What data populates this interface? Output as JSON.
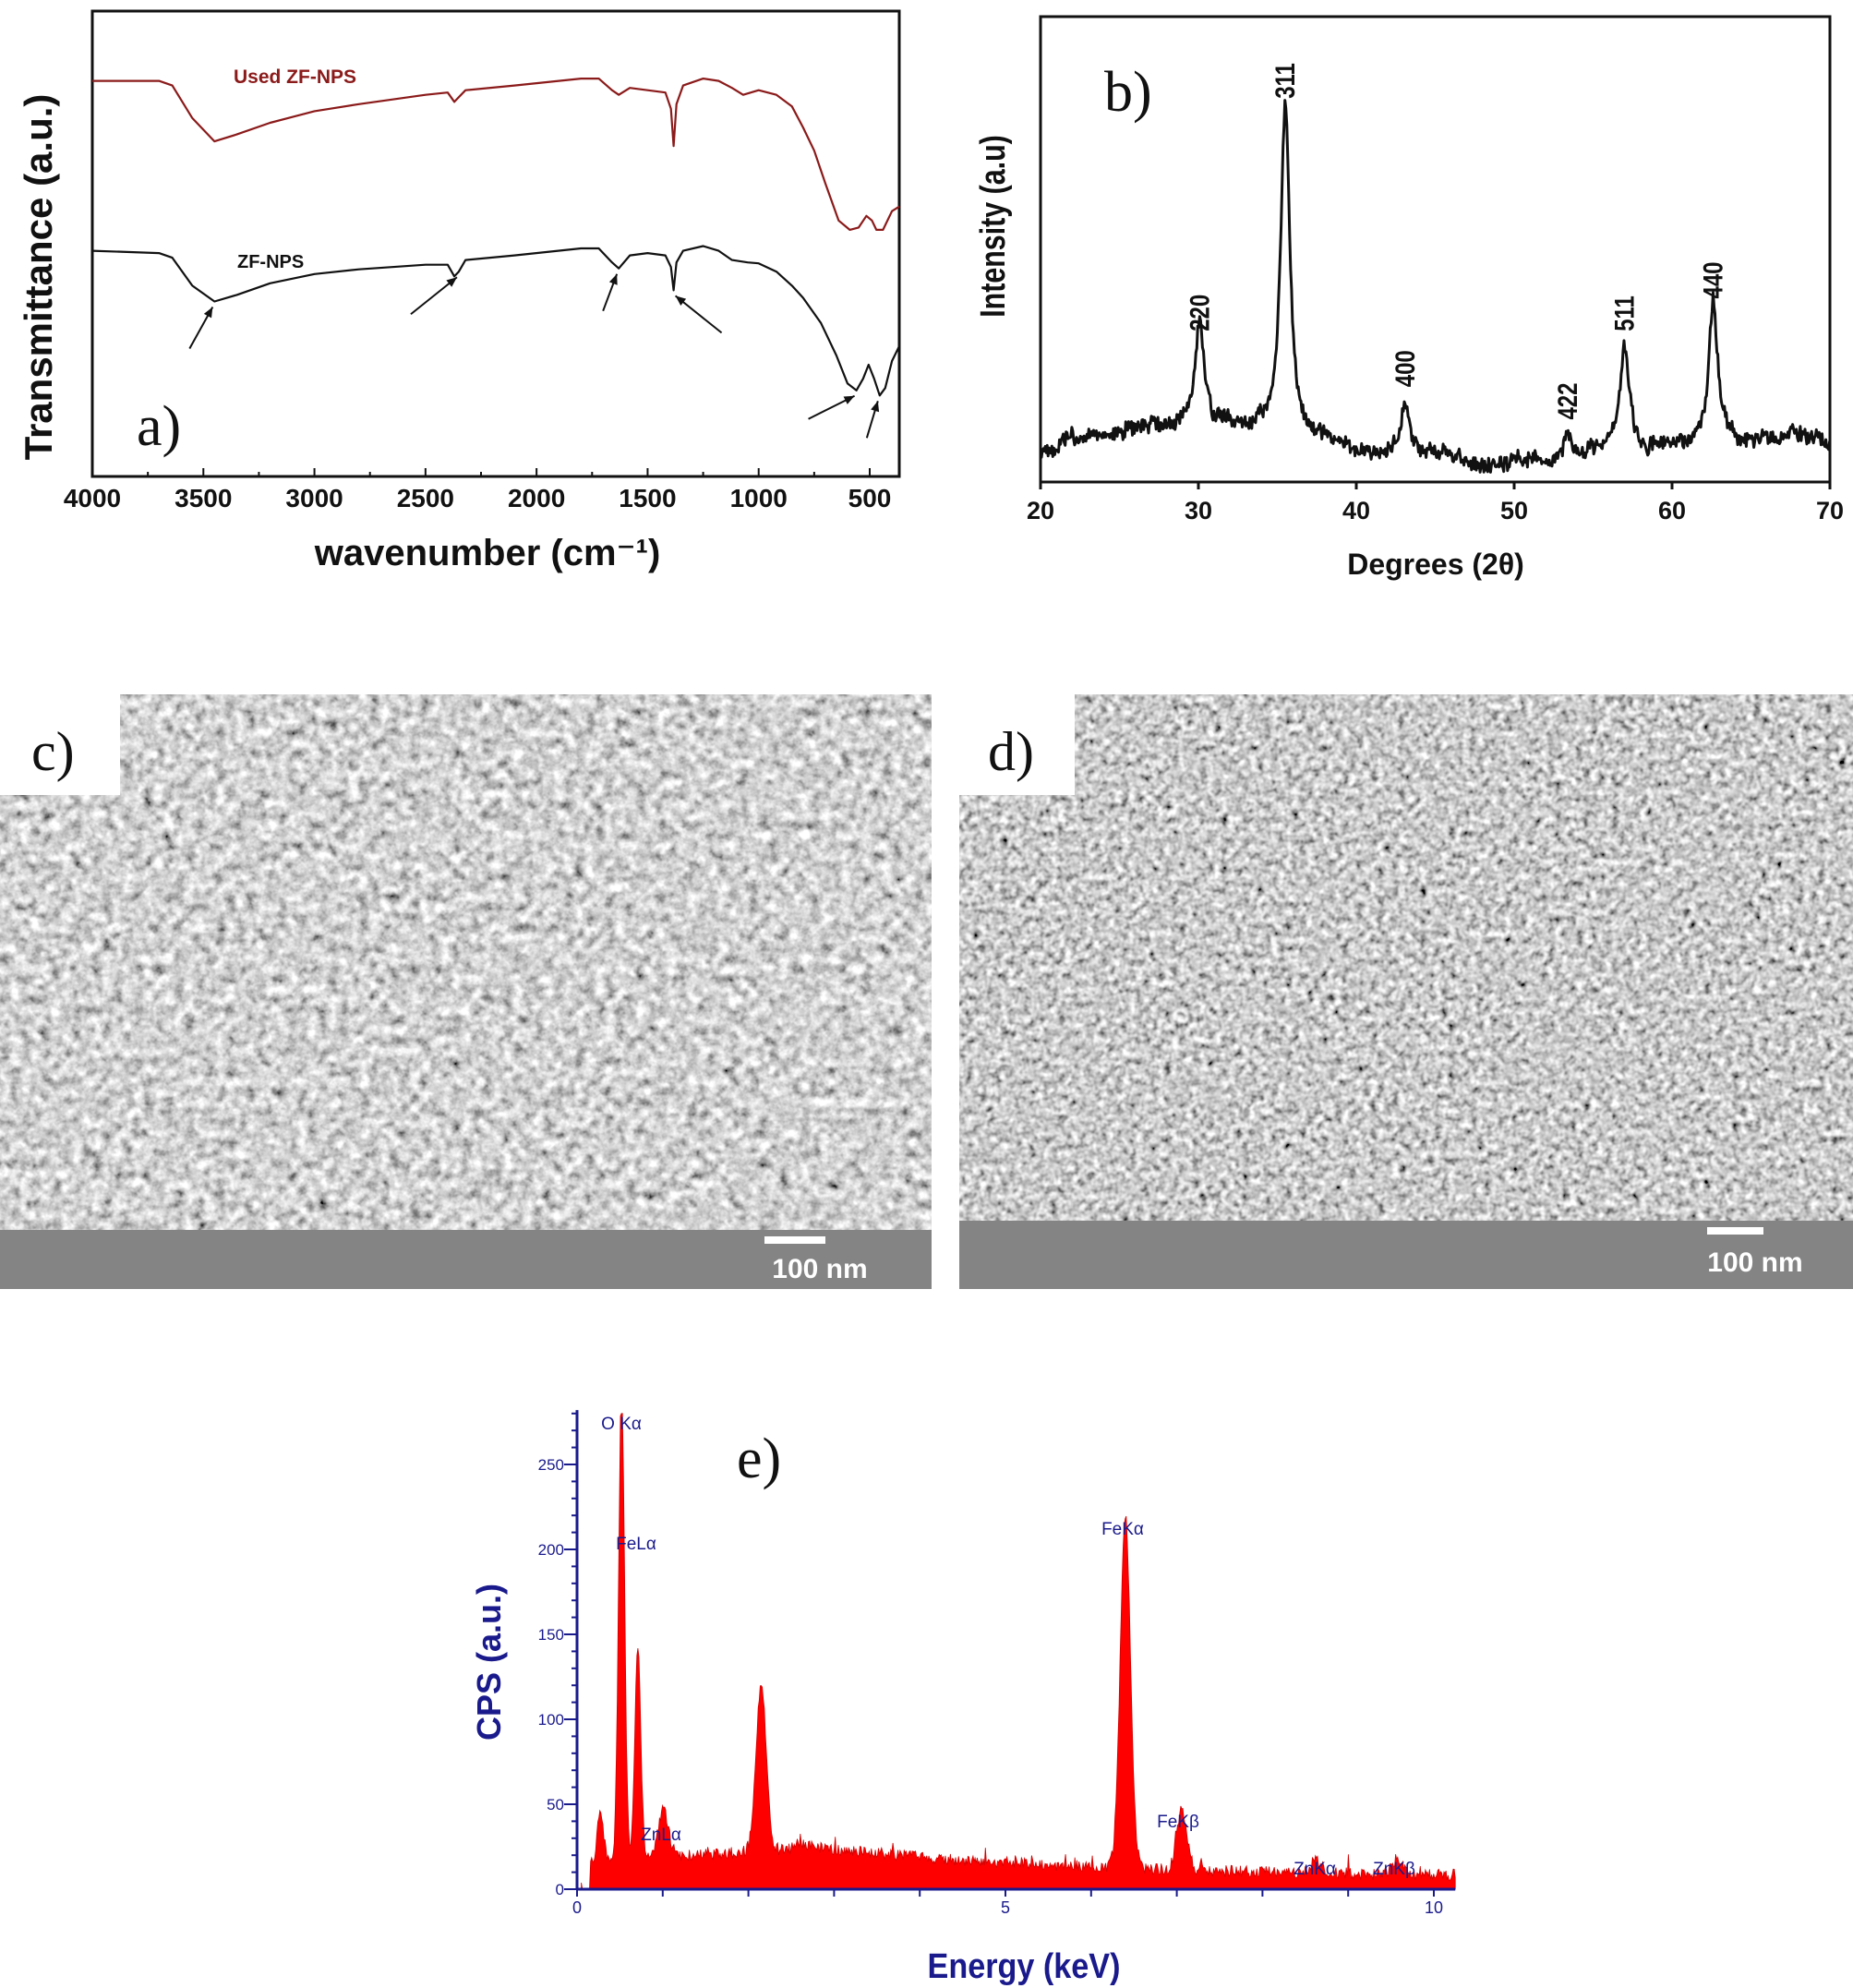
{
  "chart_data": [
    {
      "panel_label": "a)",
      "type": "line",
      "xlabel": "wavenumber (cm⁻¹)",
      "ylabel": "Transmittance (a.u.)",
      "xlim": [
        4000,
        367
      ],
      "x_reversed": true,
      "ylim": [
        0,
        100
      ],
      "xticks": [
        "4000",
        "3500",
        "3000",
        "2500",
        "2000",
        "1500",
        "1000",
        "500"
      ],
      "grid": false,
      "series": [
        {
          "name": "Used ZF-NPS",
          "color": "#8b1a1a",
          "points": [
            [
              4000,
              85
            ],
            [
              3700,
              85
            ],
            [
              3640,
              84
            ],
            [
              3550,
              77
            ],
            [
              3450,
              72
            ],
            [
              3350,
              73.5
            ],
            [
              3200,
              76
            ],
            [
              3000,
              78.5
            ],
            [
              2800,
              80
            ],
            [
              2500,
              82
            ],
            [
              2400,
              82.5
            ],
            [
              2370,
              80.5
            ],
            [
              2350,
              81.5
            ],
            [
              2320,
              83
            ],
            [
              2100,
              84
            ],
            [
              1800,
              85.5
            ],
            [
              1720,
              85.5
            ],
            [
              1660,
              83
            ],
            [
              1630,
              82
            ],
            [
              1580,
              83.5
            ],
            [
              1500,
              83
            ],
            [
              1420,
              82.5
            ],
            [
              1395,
              79
            ],
            [
              1383,
              71
            ],
            [
              1370,
              80
            ],
            [
              1340,
              84
            ],
            [
              1250,
              85.5
            ],
            [
              1180,
              85
            ],
            [
              1120,
              83.5
            ],
            [
              1070,
              82
            ],
            [
              1000,
              83
            ],
            [
              920,
              82
            ],
            [
              850,
              79.5
            ],
            [
              800,
              75
            ],
            [
              750,
              70
            ],
            [
              700,
              63
            ],
            [
              640,
              55
            ],
            [
              590,
              53
            ],
            [
              550,
              53.5
            ],
            [
              515,
              56
            ],
            [
              490,
              55
            ],
            [
              470,
              53
            ],
            [
              440,
              53
            ],
            [
              400,
              57
            ],
            [
              367,
              58
            ]
          ]
        },
        {
          "name": "ZF-NPS",
          "color": "#111111",
          "points": [
            [
              4000,
              48.5
            ],
            [
              3700,
              48
            ],
            [
              3640,
              47
            ],
            [
              3550,
              41
            ],
            [
              3450,
              37.6
            ],
            [
              3350,
              39
            ],
            [
              3200,
              41.5
            ],
            [
              3000,
              43.5
            ],
            [
              2800,
              44.5
            ],
            [
              2500,
              45.5
            ],
            [
              2400,
              45.5
            ],
            [
              2370,
              43
            ],
            [
              2350,
              44
            ],
            [
              2320,
              46.5
            ],
            [
              2100,
              47.5
            ],
            [
              1800,
              49
            ],
            [
              1720,
              49
            ],
            [
              1660,
              46
            ],
            [
              1630,
              44.7
            ],
            [
              1580,
              47.5
            ],
            [
              1500,
              48
            ],
            [
              1420,
              47.5
            ],
            [
              1395,
              45
            ],
            [
              1383,
              40
            ],
            [
              1370,
              46
            ],
            [
              1340,
              48.5
            ],
            [
              1250,
              49.5
            ],
            [
              1180,
              48.5
            ],
            [
              1120,
              46.5
            ],
            [
              1050,
              46
            ],
            [
              1000,
              45.8
            ],
            [
              920,
              44
            ],
            [
              850,
              41
            ],
            [
              800,
              38.4
            ],
            [
              720,
              33
            ],
            [
              650,
              26
            ],
            [
              600,
              20
            ],
            [
              560,
              18.5
            ],
            [
              530,
              21
            ],
            [
              505,
              24
            ],
            [
              480,
              21
            ],
            [
              455,
              17.4
            ],
            [
              430,
              19
            ],
            [
              400,
              24.8
            ],
            [
              367,
              28
            ]
          ]
        }
      ],
      "arrows_at": [
        3450,
        2350,
        1630,
        1383,
        560,
        455
      ]
    },
    {
      "panel_label": "b)",
      "type": "line",
      "xlabel": "Degrees (2θ)",
      "ylabel": "Intensity (a.u)",
      "xlim": [
        20,
        70
      ],
      "ylim": [
        0,
        100
      ],
      "xticks": [
        "20",
        "30",
        "40",
        "50",
        "60",
        "70"
      ],
      "grid": false,
      "baseline": 7,
      "peaks": [
        {
          "label": "220",
          "x": 30.1,
          "y": 30
        },
        {
          "label": "311",
          "x": 35.5,
          "y": 80
        },
        {
          "label": "400",
          "x": 43.1,
          "y": 18
        },
        {
          "label": "422",
          "x": 53.4,
          "y": 11
        },
        {
          "label": "511",
          "x": 57.0,
          "y": 30
        },
        {
          "label": "440",
          "x": 62.6,
          "y": 37
        }
      ]
    },
    {
      "panel_label": "e)",
      "type": "area",
      "xlabel": "Energy (keV)",
      "ylabel": "CPS (a.u.)",
      "xlim": [
        0,
        10.25
      ],
      "ylim": [
        0,
        282
      ],
      "xticks": [
        "0",
        "5",
        "10"
      ],
      "yticks": [
        "0",
        "50",
        "100",
        "150",
        "200",
        "250"
      ],
      "grid": false,
      "color": "#ff0000",
      "axis_color": "#1a1a8c",
      "peaks": [
        {
          "label": "",
          "x": 0.27,
          "y": 28
        },
        {
          "label": "O Kα",
          "x": 0.52,
          "y": 272
        },
        {
          "label": "FeLα",
          "x": 0.71,
          "y": 125
        },
        {
          "label": "ZnLα",
          "x": 1.01,
          "y": 28
        },
        {
          "label": "",
          "x": 2.15,
          "y": 98
        },
        {
          "label": "FeKα",
          "x": 6.4,
          "y": 207
        },
        {
          "label": "FeKβ",
          "x": 7.06,
          "y": 36
        },
        {
          "label": "ZnKα",
          "x": 8.63,
          "y": 8
        },
        {
          "label": "ZnKβ",
          "x": 9.57,
          "y": 9
        }
      ]
    }
  ],
  "images": {
    "c": {
      "panel_label": "c)",
      "scale_bar": "100 nm"
    },
    "d": {
      "panel_label": "d)",
      "scale_bar": "100 nm"
    }
  }
}
